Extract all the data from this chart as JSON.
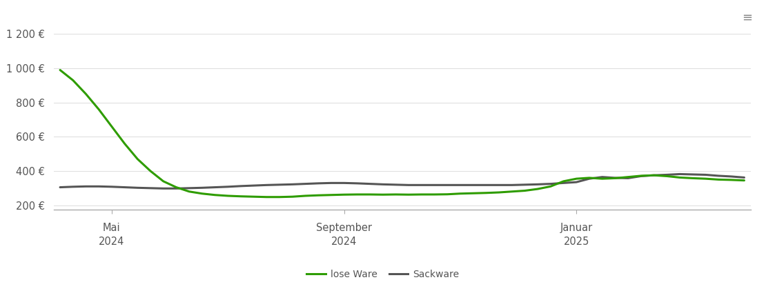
{
  "lose_ware_x": [
    0,
    1,
    2,
    3,
    4,
    5,
    6,
    7,
    8,
    9,
    10,
    11,
    12,
    13,
    14,
    15,
    16,
    17,
    18,
    19,
    20,
    21,
    22,
    23,
    24,
    25,
    26,
    27,
    28,
    29,
    30,
    31,
    32,
    33,
    34,
    35,
    36,
    37,
    38,
    39,
    40,
    41,
    42,
    43,
    44,
    45,
    46,
    47,
    48,
    49,
    50,
    51,
    52,
    53
  ],
  "lose_ware_y": [
    990,
    930,
    850,
    760,
    660,
    560,
    470,
    400,
    340,
    305,
    280,
    268,
    260,
    255,
    252,
    250,
    248,
    248,
    250,
    255,
    258,
    260,
    262,
    263,
    263,
    262,
    263,
    262,
    263,
    263,
    264,
    268,
    270,
    272,
    275,
    280,
    285,
    295,
    310,
    340,
    355,
    360,
    355,
    358,
    365,
    372,
    375,
    370,
    362,
    358,
    355,
    350,
    348,
    345
  ],
  "sackware_x": [
    0,
    1,
    2,
    3,
    4,
    5,
    6,
    7,
    8,
    9,
    10,
    11,
    12,
    13,
    14,
    15,
    16,
    17,
    18,
    19,
    20,
    21,
    22,
    23,
    24,
    25,
    26,
    27,
    28,
    29,
    30,
    31,
    32,
    33,
    34,
    35,
    36,
    37,
    38,
    39,
    40,
    41,
    42,
    43,
    44,
    45,
    46,
    47,
    48,
    49,
    50,
    51,
    52,
    53
  ],
  "sackware_y": [
    305,
    308,
    310,
    310,
    308,
    305,
    302,
    300,
    298,
    298,
    300,
    302,
    305,
    308,
    312,
    315,
    318,
    320,
    322,
    325,
    328,
    330,
    330,
    328,
    325,
    322,
    320,
    318,
    318,
    318,
    318,
    318,
    318,
    318,
    318,
    318,
    320,
    322,
    325,
    330,
    335,
    355,
    365,
    360,
    358,
    370,
    375,
    378,
    382,
    380,
    378,
    372,
    368,
    362
  ],
  "x_ticks_pos": [
    4,
    22,
    40
  ],
  "x_tick_labels_line1": [
    "Mai",
    "September",
    "Januar"
  ],
  "x_tick_labels_line2": [
    "2024",
    "2024",
    "2025"
  ],
  "y_ticks": [
    200,
    400,
    600,
    800,
    1000,
    1200
  ],
  "y_tick_labels": [
    "200 €",
    "400 €",
    "600 €",
    "800 €",
    "1 000 €",
    "1 200 €"
  ],
  "ylim": [
    175,
    1280
  ],
  "xlim": [
    -0.5,
    53.5
  ],
  "lose_ware_color": "#2e9c00",
  "sackware_color": "#555555",
  "lose_ware_label": "lose Ware",
  "sackware_label": "Sackware",
  "line_width": 2.2,
  "grid_color": "#e0e0e0",
  "background_color": "#ffffff",
  "tick_color": "#555555",
  "tick_fontsize": 10.5
}
